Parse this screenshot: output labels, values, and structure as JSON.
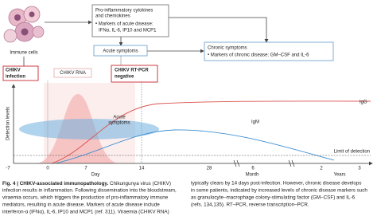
{
  "diagram": {
    "immune_cells": "Immune cells",
    "cytokines_box": {
      "title": [
        "Pro-inflammatory cytokines",
        "and chemokines"
      ],
      "bullet": [
        "• Markers of acute disease:",
        "IFNα, IL-6, IP10 and MCP1"
      ]
    },
    "acute_box": "Acute symptoms",
    "chronic_box": {
      "title": "Chronic symptoms",
      "bullet": "• Markers of chronic disease: GM–CSF and IL-6"
    }
  },
  "timeline": {
    "infection": [
      "CHIKV",
      "infection"
    ],
    "rna": "CHIKV RNA",
    "rtpcr": [
      "CHIKV RT-PCR",
      "negative"
    ],
    "y_label": "Detection levels",
    "acute_label": [
      "Acute",
      "symptoms"
    ],
    "igg": "IgG",
    "igm": "IgM",
    "limit": "Limit of detection",
    "x_ticks": [
      "-7",
      "0",
      "7",
      "14",
      "28",
      "6",
      "2",
      "3"
    ],
    "x_units": [
      "Day",
      "Month",
      "Years"
    ]
  },
  "caption": {
    "label": "Fig. 4 | CHIKV-associated immunopathology.",
    "left": [
      " Chikungunya virus (CHIKV)",
      "infection results in inflammation. Following dissemination into the bloodstream,",
      "viraemia occurs, which triggers the production of pro-inflammatory immune",
      "mediators, resulting in acute disease. Markers of acute disease include",
      "interferon-α (IFNα), IL-6, IP10 and MCP1 (ref. 311). Viraemia (CHIKV RNA)"
    ],
    "right": [
      "typically clears by 14 days post-infection. However, chronic disease develops",
      "in some patients, indicated by increased levels of chronic disease markers such",
      "as granulocyte–macrophage colony-stimulating factor (GM–CSF) and IL-6",
      "(refs. 134,135). RT–PCR, reverse transcription–PCR."
    ]
  }
}
